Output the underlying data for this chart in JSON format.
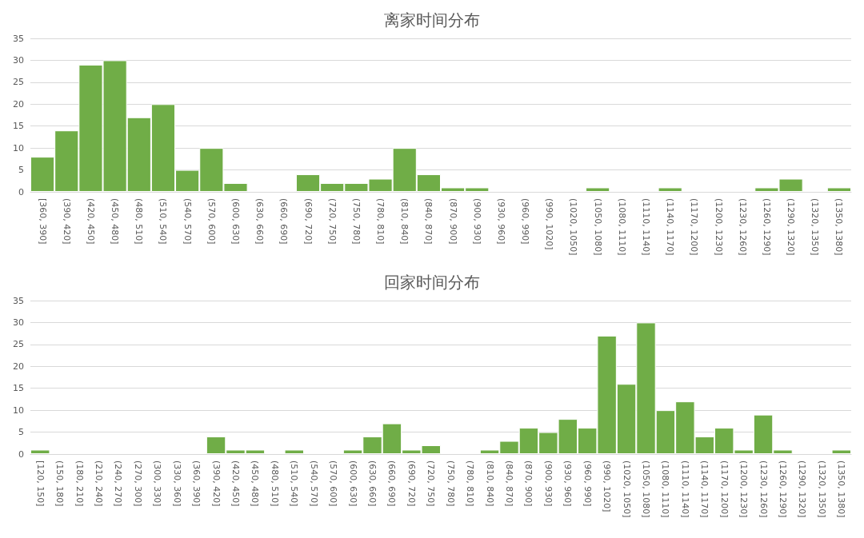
{
  "chart_data": [
    {
      "type": "bar",
      "title": "离家时间分布",
      "categories": [
        "[360, 390]",
        "(390, 420]",
        "(420, 450]",
        "(450, 480]",
        "(480, 510]",
        "(510, 540]",
        "(540, 570]",
        "(570, 600]",
        "(600, 630]",
        "(630, 660]",
        "(660, 690]",
        "(690, 720]",
        "(720, 750]",
        "(750, 780]",
        "(780, 810]",
        "(810, 840]",
        "(840, 870]",
        "(870, 900]",
        "(900, 930]",
        "(930, 960]",
        "(960, 990]",
        "(990, 1020]",
        "(1020, 1050]",
        "(1050, 1080]",
        "(1080, 1110]",
        "(1110, 1140]",
        "(1140, 1170]",
        "(1170, 1200]",
        "(1200, 1230]",
        "(1230, 1260]",
        "(1260, 1290]",
        "(1290, 1320]",
        "(1320, 1350]",
        "(1350, 1380]"
      ],
      "values": [
        8,
        14,
        29,
        30,
        17,
        20,
        5,
        10,
        2,
        0,
        0,
        4,
        2,
        2,
        3,
        10,
        4,
        1,
        1,
        0,
        0,
        0,
        0,
        1,
        0,
        0,
        1,
        0,
        0,
        0,
        1,
        3,
        0,
        1
      ],
      "color": "#70ad47",
      "ylim": [
        0,
        35
      ],
      "yticks": [
        0,
        5,
        10,
        15,
        20,
        25,
        30,
        35
      ],
      "grid": "y"
    },
    {
      "type": "bar",
      "title": "回家时间分布",
      "categories": [
        "[120, 150]",
        "(150, 180]",
        "(180, 210]",
        "(210, 240]",
        "(240, 270]",
        "(270, 300]",
        "(300, 330]",
        "(330, 360]",
        "(360, 390]",
        "(390, 420]",
        "(420, 450]",
        "(450, 480]",
        "(480, 510]",
        "(510, 540]",
        "(540, 570]",
        "(570, 600]",
        "(600, 630]",
        "(630, 660]",
        "(660, 690]",
        "(690, 720]",
        "(720, 750]",
        "(750, 780]",
        "(780, 810]",
        "(810, 840]",
        "(840, 870]",
        "(870, 900]",
        "(900, 930]",
        "(930, 960]",
        "(960, 990]",
        "(990, 1020]",
        "(1020, 1050]",
        "(1050, 1080]",
        "(1080, 1110]",
        "(1110, 1140]",
        "(1140, 1170]",
        "(1170, 1200]",
        "(1200, 1230]",
        "(1230, 1260]",
        "(1260, 1290]",
        "(1290, 1320]",
        "(1320, 1350]",
        "(1350, 1380]"
      ],
      "values": [
        1,
        0,
        0,
        0,
        0,
        0,
        0,
        0,
        0,
        4,
        1,
        1,
        0,
        1,
        0,
        0,
        1,
        4,
        7,
        1,
        2,
        0,
        0,
        1,
        3,
        6,
        5,
        8,
        6,
        27,
        16,
        30,
        10,
        12,
        4,
        6,
        1,
        9,
        1,
        0,
        0,
        1
      ],
      "color": "#70ad47",
      "ylim": [
        0,
        35
      ],
      "yticks": [
        0,
        5,
        10,
        15,
        20,
        25,
        30,
        35
      ],
      "grid": "y"
    }
  ]
}
